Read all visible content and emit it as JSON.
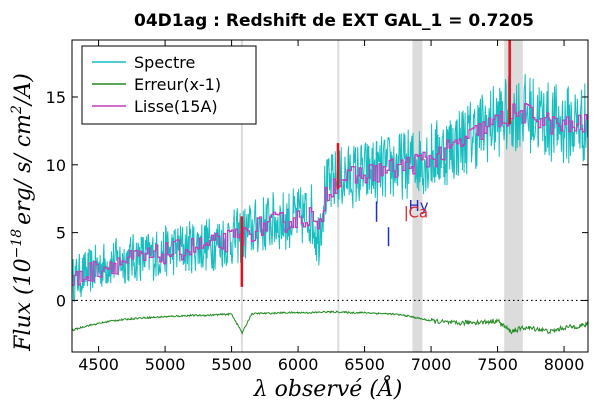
{
  "chart_data": {
    "type": "line",
    "title": "04D1ag : Redshift de EXT GAL_1 = 0.7205",
    "xlabel": "λ observé (Å)",
    "ylabel": "Flux (10^-18 erg/s/cm²/A)",
    "ylabel_parts": {
      "main": "Flux (10",
      "exp": "−18",
      "rest": "erg/ s/ cm",
      "exp2": "2",
      "end": "/A)"
    },
    "xlim": [
      4300,
      8180
    ],
    "ylim": [
      -3.8,
      19.2
    ],
    "xticks": [
      4500,
      5000,
      5500,
      6000,
      6500,
      7000,
      7500,
      8000
    ],
    "yticks": [
      0,
      5,
      10,
      15
    ],
    "x_tick_labels": [
      "4500",
      "5000",
      "5500",
      "6000",
      "6500",
      "7000",
      "7500",
      "8000"
    ],
    "y_tick_labels": [
      "0",
      "5",
      "10",
      "15"
    ],
    "legend": {
      "position": "top-left",
      "entries": [
        {
          "label": "Spectre",
          "color": "#17bebf"
        },
        {
          "label": "Erreur(x-1)",
          "color": "#228b22"
        },
        {
          "label": "Lisse(15A)",
          "color": "#bf3fbf"
        }
      ]
    },
    "series": [
      {
        "name": "Spectre",
        "color": "#17bebf",
        "x": [
          4300,
          4400,
          4500,
          4600,
          4700,
          4800,
          4900,
          5000,
          5100,
          5200,
          5300,
          5400,
          5500,
          5580,
          5650,
          5700,
          5800,
          5900,
          6000,
          6100,
          6150,
          6200,
          6300,
          6400,
          6500,
          6600,
          6700,
          6800,
          6900,
          7000,
          7100,
          7200,
          7300,
          7400,
          7500,
          7600,
          7700,
          7800,
          7900,
          8000,
          8100,
          8180
        ],
        "y": [
          1.5,
          2.0,
          2.5,
          2.8,
          3.0,
          3.2,
          3.3,
          3.6,
          3.8,
          4.0,
          4.1,
          4.3,
          4.6,
          4.8,
          5.2,
          5.5,
          5.8,
          5.9,
          6.1,
          6.4,
          4.5,
          8.0,
          9.0,
          9.2,
          9.4,
          9.6,
          9.8,
          10.0,
          10.3,
          10.6,
          11.0,
          11.6,
          12.2,
          12.8,
          13.3,
          13.8,
          13.9,
          13.6,
          13.1,
          12.9,
          13.0,
          13.2
        ]
      },
      {
        "name": "Erreur(x-1)",
        "color": "#228b22",
        "x": [
          4300,
          4400,
          4500,
          4600,
          4700,
          4800,
          4900,
          5000,
          5100,
          5200,
          5300,
          5400,
          5500,
          5580,
          5650,
          5700,
          5800,
          5900,
          6000,
          6100,
          6200,
          6300,
          6400,
          6500,
          6600,
          6700,
          6800,
          6900,
          7000,
          7100,
          7200,
          7300,
          7400,
          7500,
          7600,
          7700,
          7800,
          7900,
          8000,
          8100,
          8180
        ],
        "y": [
          -2.2,
          -1.9,
          -1.7,
          -1.5,
          -1.4,
          -1.3,
          -1.25,
          -1.2,
          -1.15,
          -1.1,
          -1.1,
          -1.05,
          -1.0,
          -2.4,
          -1.0,
          -0.95,
          -0.95,
          -0.9,
          -0.9,
          -0.9,
          -0.85,
          -0.85,
          -0.9,
          -0.9,
          -0.95,
          -1.0,
          -1.1,
          -1.3,
          -1.5,
          -1.6,
          -1.7,
          -1.6,
          -1.6,
          -1.5,
          -2.3,
          -2.0,
          -2.1,
          -2.3,
          -2.0,
          -1.9,
          -1.8
        ]
      },
      {
        "name": "Lisse(15A)",
        "color": "#bf3fbf",
        "x": [
          4300,
          4400,
          4500,
          4600,
          4700,
          4800,
          4900,
          5000,
          5100,
          5200,
          5300,
          5400,
          5500,
          5580,
          5650,
          5700,
          5800,
          5900,
          6000,
          6100,
          6150,
          6200,
          6300,
          6400,
          6500,
          6600,
          6700,
          6800,
          6900,
          7000,
          7100,
          7200,
          7300,
          7400,
          7500,
          7600,
          7700,
          7800,
          7900,
          8000,
          8100,
          8180
        ],
        "y": [
          1.4,
          1.9,
          2.4,
          2.7,
          2.9,
          3.1,
          3.2,
          3.5,
          3.7,
          3.9,
          4.0,
          4.2,
          4.5,
          4.7,
          5.1,
          5.4,
          5.7,
          5.8,
          6.0,
          6.3,
          4.6,
          7.9,
          8.9,
          9.1,
          9.3,
          9.5,
          9.7,
          9.9,
          10.2,
          10.5,
          10.9,
          11.5,
          12.1,
          12.7,
          13.2,
          13.7,
          13.8,
          13.5,
          13.0,
          12.8,
          12.9,
          13.1
        ]
      }
    ],
    "grey_bands": [
      {
        "x0": 5570,
        "x1": 5585
      },
      {
        "x0": 6295,
        "x1": 6305
      },
      {
        "x0": 6860,
        "x1": 6935
      },
      {
        "x0": 7550,
        "x1": 7690
      }
    ],
    "red_spikes": [
      {
        "x": 5577,
        "y0": 1.0,
        "y1": 6.2
      },
      {
        "x": 6300,
        "y0": 8.2,
        "y1": 11.6
      },
      {
        "x": 7591,
        "y0": 13.0,
        "y1": 19.2
      }
    ],
    "line_markers": [
      {
        "x": 6590,
        "y0": 5.8,
        "y1": 7.3,
        "color": "#1f2fbf"
      },
      {
        "x": 6680,
        "y0": 4.0,
        "y1": 5.4,
        "color": "#1f2fbf"
      }
    ],
    "annotations": [
      {
        "text": "Hy",
        "x": 6830,
        "y": 6.6,
        "color": "#2a2abf"
      },
      {
        "text": "Ca",
        "x": 6830,
        "y": 6.1,
        "color": "#e0202a"
      },
      {
        "text": "|",
        "x": 6795,
        "y": 6.1,
        "color": "#e0202a"
      }
    ],
    "zero_line": {
      "y": 0,
      "style": "dotted"
    }
  }
}
